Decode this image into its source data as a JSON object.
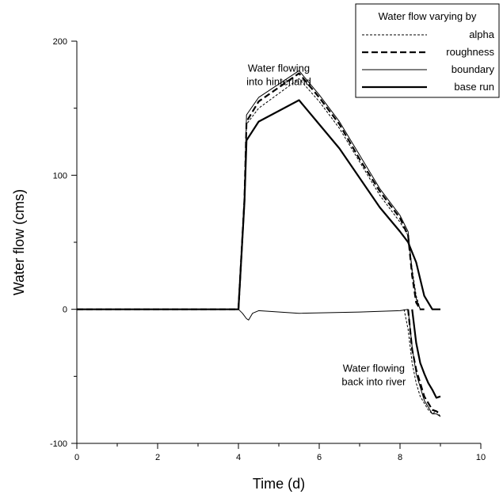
{
  "chart_data": {
    "type": "line",
    "title": "",
    "xlabel": "Time (d)",
    "ylabel": "Water flow (cms)",
    "xlim": [
      0,
      10
    ],
    "ylim": [
      -100,
      200
    ],
    "x_ticks": [
      0,
      2,
      4,
      6,
      8,
      10
    ],
    "x_tick_labels": [
      "0",
      "2",
      "4",
      "6",
      "8",
      "10"
    ],
    "y_ticks": [
      -100,
      0,
      100,
      200
    ],
    "y_tick_labels": [
      "-100",
      "0",
      "100",
      "200"
    ],
    "grid": false,
    "legend": {
      "title": "Water flow varying by",
      "placement": "top-right",
      "entries": [
        "alpha",
        "roughness",
        "boundary",
        "base run"
      ]
    },
    "annotations": [
      {
        "line1": "Water flowing",
        "line2": "into hinterland",
        "x": 5.0,
        "y": 172
      },
      {
        "line1": "Water flowing",
        "line2": "back into river",
        "x": 7.35,
        "y": -52
      }
    ],
    "series": [
      {
        "name": "alpha",
        "style": "thin-dashed",
        "segments": [
          {
            "x": [
              0,
              4.0,
              4.15,
              4.2,
              4.5,
              5.5,
              6.0,
              6.5,
              7.0,
              7.5,
              8.0,
              8.2,
              8.3,
              8.4,
              8.5,
              8.6
            ],
            "y": [
              0,
              0,
              80,
              138,
              150,
              172,
              155,
              135,
              110,
              85,
              65,
              55,
              30,
              10,
              0,
              0
            ]
          },
          {
            "x": [
              8.1,
              8.2,
              8.3,
              8.4,
              8.5,
              8.6,
              8.7,
              8.8,
              8.9,
              9.0
            ],
            "y": [
              0,
              -15,
              -40,
              -55,
              -65,
              -70,
              -75,
              -78,
              -76,
              -80
            ]
          }
        ]
      },
      {
        "name": "roughness",
        "style": "thick-dashed",
        "segments": [
          {
            "x": [
              0,
              4.0,
              4.15,
              4.2,
              4.5,
              5.5,
              6.0,
              6.5,
              7.0,
              7.5,
              8.0,
              8.2,
              8.3,
              8.4,
              8.5,
              8.6
            ],
            "y": [
              0,
              0,
              82,
              140,
              155,
              176,
              158,
              138,
              112,
              88,
              68,
              55,
              25,
              5,
              0,
              0
            ]
          },
          {
            "x": [
              8.2,
              8.3,
              8.4,
              8.5,
              8.6,
              8.7,
              8.8,
              8.9,
              9.0
            ],
            "y": [
              0,
              -30,
              -45,
              -55,
              -65,
              -70,
              -75,
              -76,
              -78
            ]
          }
        ]
      },
      {
        "name": "boundary",
        "style": "thin-solid",
        "segments": [
          {
            "x": [
              0,
              4.0,
              4.15,
              4.2,
              4.5,
              5.5,
              6.0,
              6.5,
              7.0,
              7.5,
              8.0,
              8.2,
              8.3,
              8.4,
              8.5,
              8.6
            ],
            "y": [
              0,
              0,
              85,
              145,
              158,
              178,
              160,
              140,
              115,
              90,
              70,
              58,
              28,
              8,
              0,
              0
            ]
          },
          {
            "x": [
              8.2,
              8.3,
              8.4,
              8.5,
              8.6,
              8.7,
              8.8,
              8.9,
              9.0
            ],
            "y": [
              0,
              -28,
              -48,
              -58,
              -68,
              -73,
              -78,
              -78,
              -80
            ]
          },
          {
            "x": [
              4.0,
              4.1,
              4.2,
              4.25,
              4.35,
              4.5,
              5.5,
              7.0,
              8.0,
              8.2
            ],
            "y": [
              0,
              -3,
              -7,
              -8,
              -3,
              -1,
              -3,
              -2,
              -1,
              0
            ]
          }
        ]
      },
      {
        "name": "base run",
        "style": "thick-solid",
        "segments": [
          {
            "x": [
              0,
              4.0,
              4.15,
              4.2,
              4.5,
              5.5,
              6.0,
              6.5,
              7.0,
              7.5,
              8.0,
              8.2,
              8.4,
              8.6,
              8.8,
              9.0
            ],
            "y": [
              0,
              0,
              80,
              126,
              140,
              156,
              138,
              120,
              98,
              76,
              58,
              50,
              35,
              10,
              0,
              0
            ]
          },
          {
            "x": [
              8.3,
              8.4,
              8.5,
              8.6,
              8.7,
              8.8,
              8.9,
              9.0
            ],
            "y": [
              0,
              -25,
              -40,
              -48,
              -55,
              -60,
              -66,
              -65
            ]
          }
        ]
      }
    ]
  }
}
